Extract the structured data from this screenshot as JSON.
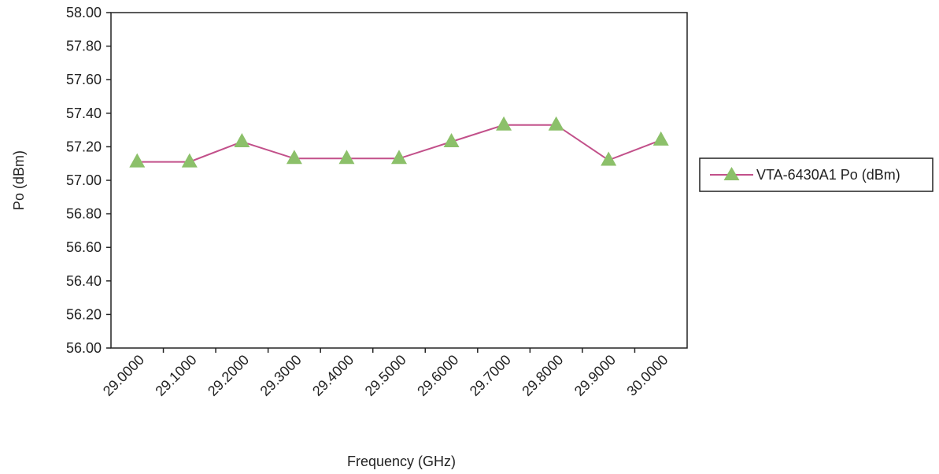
{
  "chart_data": {
    "type": "line",
    "title": "",
    "xlabel": "Frequency (GHz)",
    "ylabel": "Po (dBm)",
    "categories": [
      "29.0000",
      "29.1000",
      "29.2000",
      "29.3000",
      "29.4000",
      "29.5000",
      "29.6000",
      "29.7000",
      "29.8000",
      "29.9000",
      "30.0000"
    ],
    "ylim": [
      56.0,
      58.0
    ],
    "yticks": [
      "56.00",
      "56.20",
      "56.40",
      "56.60",
      "56.80",
      "57.00",
      "57.20",
      "57.40",
      "57.60",
      "57.80",
      "58.00"
    ],
    "grid": false,
    "legend": "right",
    "series": [
      {
        "name": "VTA-6430A1 Po (dBm)",
        "values": [
          57.11,
          57.11,
          57.23,
          57.13,
          57.13,
          57.13,
          57.23,
          57.33,
          57.33,
          57.12,
          57.24
        ],
        "line_color": "#c2508a",
        "marker_color": "#8cc06a",
        "marker": "triangle"
      }
    ]
  }
}
